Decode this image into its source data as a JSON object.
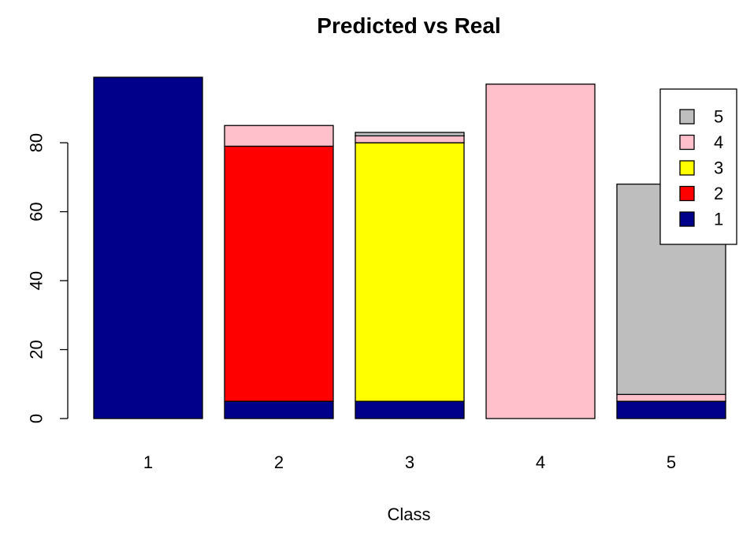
{
  "chart_data": {
    "type": "bar",
    "stacked": true,
    "title": "Predicted vs Real",
    "xlabel": "Class",
    "ylabel": "",
    "categories": [
      "1",
      "2",
      "3",
      "4",
      "5"
    ],
    "ylim": [
      0,
      100
    ],
    "yticks": [
      0,
      20,
      40,
      60,
      80
    ],
    "grid": false,
    "legend_position": "top-right",
    "series": [
      {
        "name": "1",
        "color": "#00008B",
        "values": [
          99,
          5,
          5,
          0,
          5
        ]
      },
      {
        "name": "2",
        "color": "#FF0000",
        "values": [
          0,
          74,
          0,
          0,
          0
        ]
      },
      {
        "name": "3",
        "color": "#FFFF00",
        "values": [
          0,
          0,
          75,
          0,
          0
        ]
      },
      {
        "name": "4",
        "color": "#FFC0CB",
        "values": [
          0,
          6,
          2,
          97,
          2
        ]
      },
      {
        "name": "5",
        "color": "#BEBEBE",
        "values": [
          0,
          0,
          1,
          0,
          61
        ]
      }
    ]
  }
}
